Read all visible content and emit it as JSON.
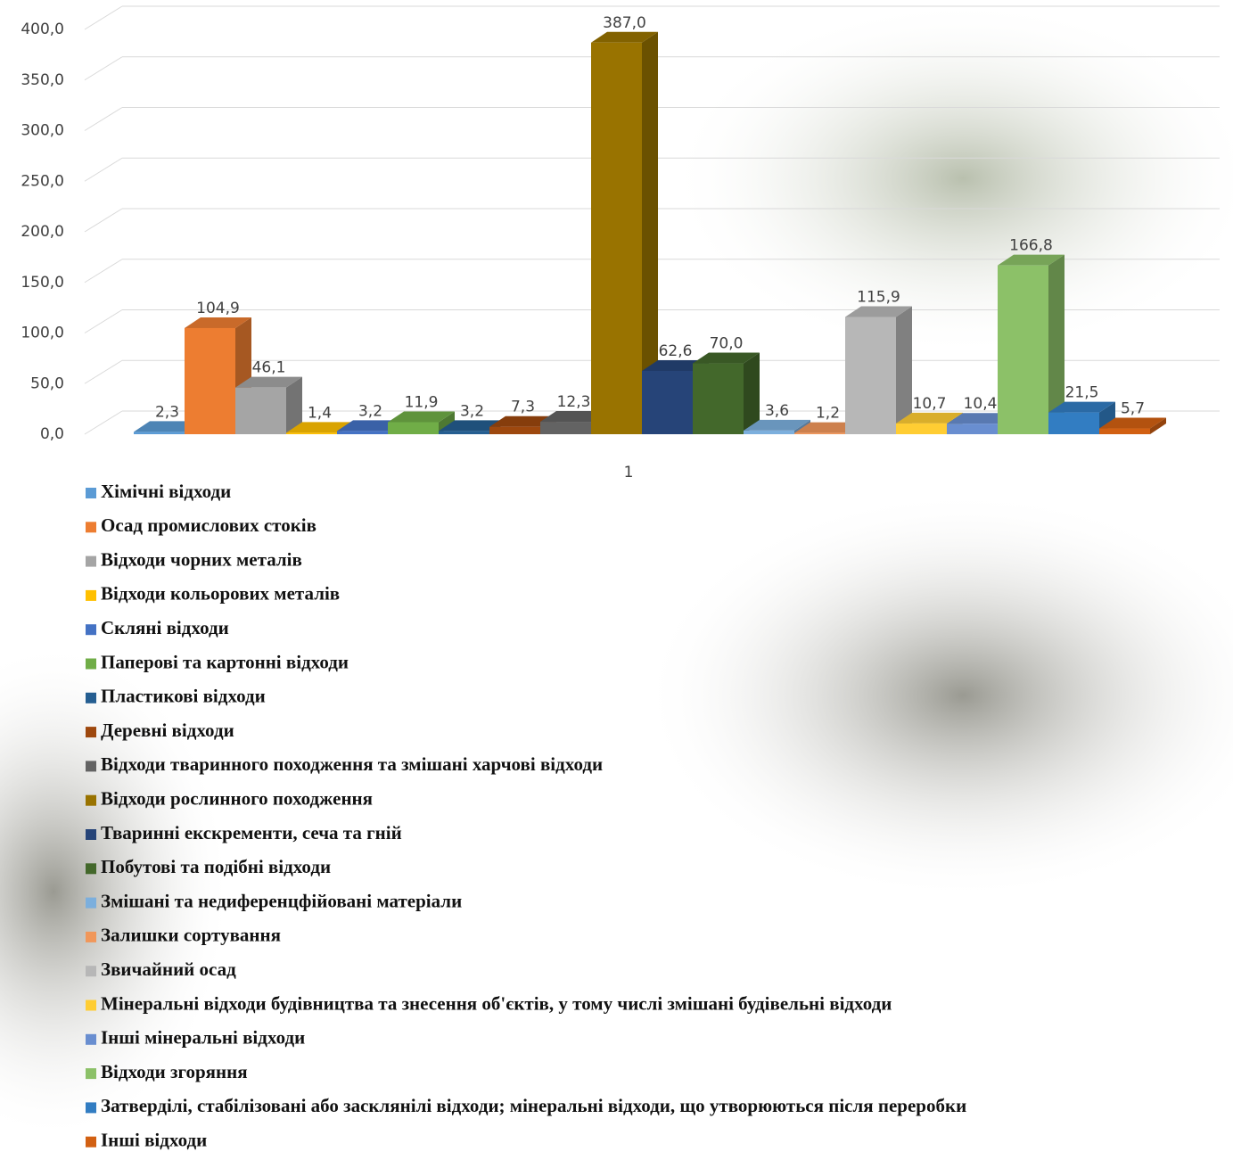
{
  "chart_data": {
    "type": "bar3d",
    "categories": [
      "1"
    ],
    "ylim": [
      0,
      400
    ],
    "yticks": [
      {
        "value": 0,
        "label": "0,0"
      },
      {
        "value": 50,
        "label": "50,0"
      },
      {
        "value": 100,
        "label": "100,0"
      },
      {
        "value": 150,
        "label": "150,0"
      },
      {
        "value": 200,
        "label": "200,0"
      },
      {
        "value": 250,
        "label": "250,0"
      },
      {
        "value": 300,
        "label": "300,0"
      },
      {
        "value": 350,
        "label": "350,0"
      },
      {
        "value": 400,
        "label": "400,0"
      }
    ],
    "grid": true,
    "legend": "bottom",
    "series": [
      {
        "name": "Хімічні відходи",
        "color": "#5b9bd5",
        "values": [
          2.3
        ],
        "value_labels": [
          "2,3"
        ]
      },
      {
        "name": "Осад промислових стоків",
        "color": "#ed7d31",
        "values": [
          104.9
        ],
        "value_labels": [
          "104,9"
        ]
      },
      {
        "name": "Відходи чорних металів",
        "color": "#a5a5a5",
        "values": [
          46.1
        ],
        "value_labels": [
          "46,1"
        ]
      },
      {
        "name": "Відходи кольорових металів",
        "color": "#ffc000",
        "values": [
          1.4
        ],
        "value_labels": [
          "1,4"
        ]
      },
      {
        "name": "Скляні відходи",
        "color": "#4472c4",
        "values": [
          3.2
        ],
        "value_labels": [
          "3,2"
        ]
      },
      {
        "name": "Паперові та картонні відходи",
        "color": "#70ad47",
        "values": [
          11.9
        ],
        "value_labels": [
          "11,9"
        ]
      },
      {
        "name": "Пластикові відходи",
        "color": "#255e91",
        "values": [
          3.2
        ],
        "value_labels": [
          "3,2"
        ]
      },
      {
        "name": "Деревні відходи",
        "color": "#9e480e",
        "values": [
          7.3
        ],
        "value_labels": [
          "7,3"
        ]
      },
      {
        "name": "Відходи тваринного походження та змішані харчові відходи",
        "color": "#636363",
        "values": [
          12.3
        ],
        "value_labels": [
          "12,3"
        ]
      },
      {
        "name": "Відходи рослинного походження",
        "color": "#997300",
        "values": [
          387.0
        ],
        "value_labels": [
          "387,0"
        ]
      },
      {
        "name": "Тваринні екскременти, сеча та гній",
        "color": "#264478",
        "values": [
          62.6
        ],
        "value_labels": [
          "62,6"
        ]
      },
      {
        "name": "Побутові та подібні відходи",
        "color": "#43682b",
        "values": [
          70.0
        ],
        "value_labels": [
          "70,0"
        ]
      },
      {
        "name": "Змішані та недиференцфійовані матеріали",
        "color": "#7cafdd",
        "values": [
          3.6
        ],
        "value_labels": [
          "3,6"
        ]
      },
      {
        "name": "Залишки сортування",
        "color": "#f1975a",
        "values": [
          1.2
        ],
        "value_labels": [
          "1,2"
        ]
      },
      {
        "name": "Звичайний осад",
        "color": "#b7b7b7",
        "values": [
          115.9
        ],
        "value_labels": [
          "115,9"
        ]
      },
      {
        "name": "Мінеральні відходи будівництва та знесення об'єктів, у тому числі змішані будівельні відходи",
        "color": "#ffcd33",
        "values": [
          10.7
        ],
        "value_labels": [
          "10,7"
        ]
      },
      {
        "name": "Інші мінеральні відходи",
        "color": "#698ed0",
        "values": [
          10.4
        ],
        "value_labels": [
          "10,4"
        ]
      },
      {
        "name": "Відходи згоряння",
        "color": "#8cc168",
        "values": [
          166.8
        ],
        "value_labels": [
          "166,8"
        ]
      },
      {
        "name": "Затверділі, стабілізовані або засклянілі відходи; мінеральні відходи, що утворюються після переробки",
        "color": "#327dc2",
        "values": [
          21.5
        ],
        "value_labels": [
          "21,5"
        ]
      },
      {
        "name": "Інші відходи",
        "color": "#d26012",
        "values": [
          5.7
        ],
        "value_labels": [
          "5,7"
        ]
      }
    ]
  }
}
